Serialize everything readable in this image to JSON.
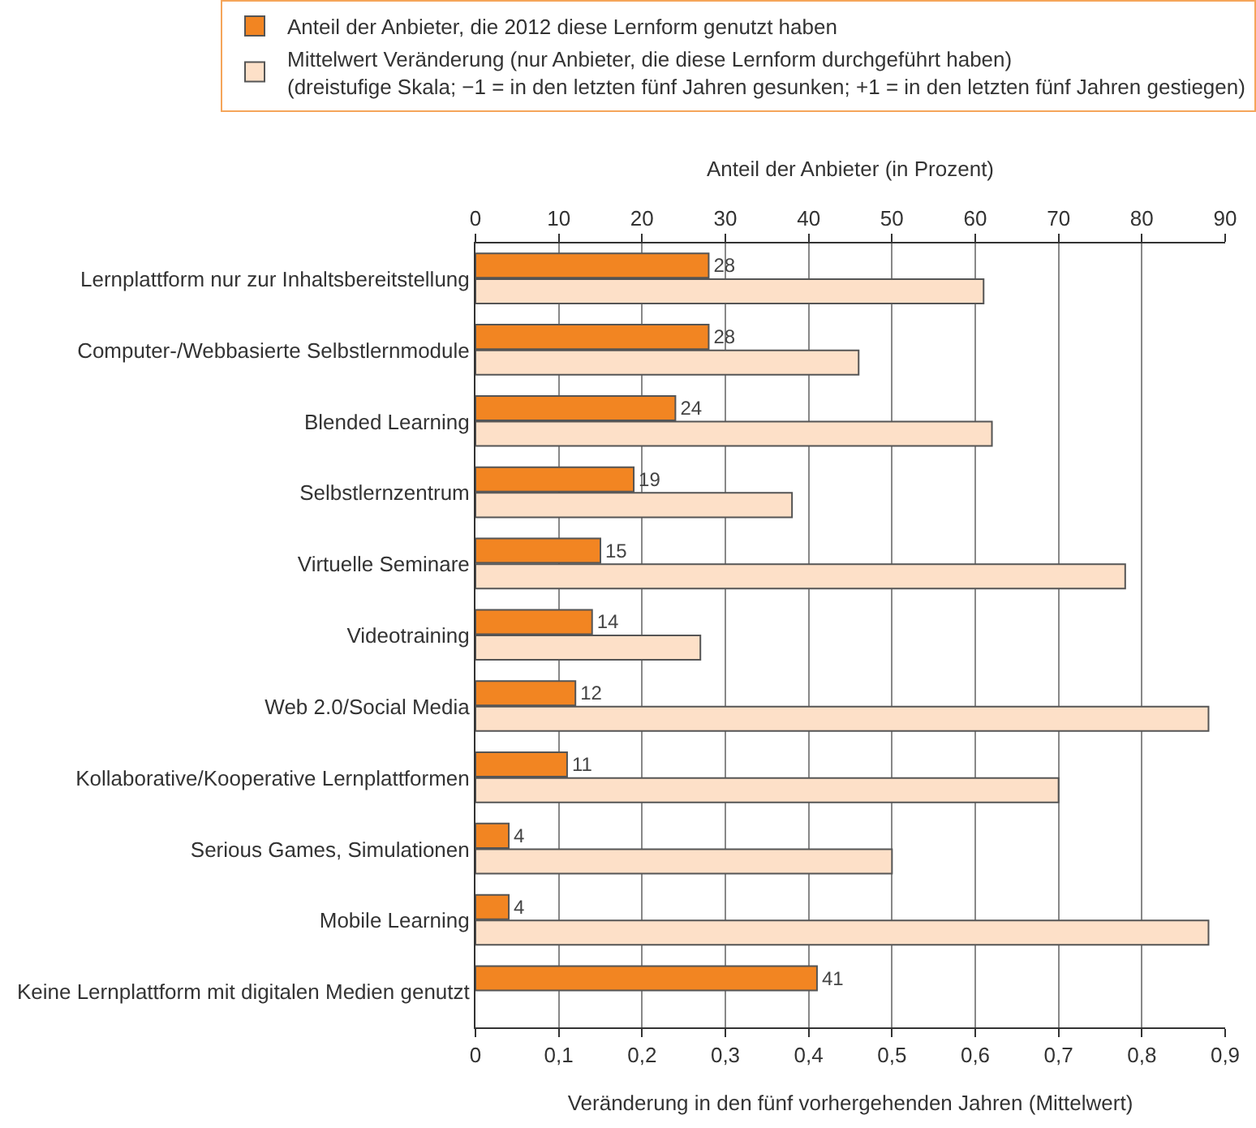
{
  "chart_data": {
    "type": "bar",
    "orientation": "horizontal",
    "categories": [
      "Lernplattform nur zur Inhaltsbereitstellung",
      "Computer-/Webbasierte Selbstlernmodule",
      "Blended Learning",
      "Selbstlernzentrum",
      "Virtuelle Seminare",
      "Videotraining",
      "Web 2.0/Social Media",
      "Kollaborative/Kooperative Lernplattformen",
      "Serious Games, Simulationen",
      "Mobile Learning",
      "Keine Lernplattform mit digitalen Medien genutzt"
    ],
    "series": [
      {
        "name": "Anteil der Anbieter, die 2012 diese Lernform genutzt haben",
        "color": "#f28522",
        "axis": "x2",
        "values": [
          28,
          28,
          24,
          19,
          15,
          14,
          12,
          11,
          4,
          4,
          41
        ],
        "value_labels": [
          "28",
          "28",
          "24",
          "19",
          "15",
          "14",
          "12",
          "11",
          "4",
          "4",
          "41"
        ]
      },
      {
        "name": "Mittelwert Veränderung (nur Anbieter, die diese Lernform durchgeführt haben)\n(dreistufige Skala; −1 = in den letzten fünf Jahren gesunken; +1 = in den letzten fünf Jahren gestiegen)",
        "color": "#fde0c8",
        "values": [
          0.61,
          0.46,
          0.62,
          0.38,
          0.78,
          0.27,
          0.88,
          0.7,
          0.5,
          0.88,
          null
        ]
      }
    ],
    "xlabel": "Veränderung in den fünf vorhergehenden Jahren (Mittelwert)",
    "x2label": "Anteil der Anbieter (in Prozent)",
    "xlim": [
      0,
      0.9
    ],
    "xticks": [
      0,
      {
        "value": 0.1,
        "label": "0,1"
      },
      {
        "value": 0.2,
        "label": "0,2"
      },
      {
        "value": 0.3,
        "label": "0,3"
      },
      {
        "value": 0.4,
        "label": "0,4"
      },
      {
        "value": 0.5,
        "label": "0,5"
      },
      {
        "value": 0.6,
        "label": "0,6"
      },
      {
        "value": 0.7,
        "label": "0,7"
      },
      {
        "value": 0.8,
        "label": "0,8"
      },
      {
        "value": 0.9,
        "label": "0,9"
      }
    ],
    "x2lim": [
      0,
      90
    ],
    "x2ticks": [
      0,
      10,
      20,
      30,
      40,
      50,
      60,
      70,
      80,
      90
    ],
    "grid": "x",
    "legend": "top"
  }
}
